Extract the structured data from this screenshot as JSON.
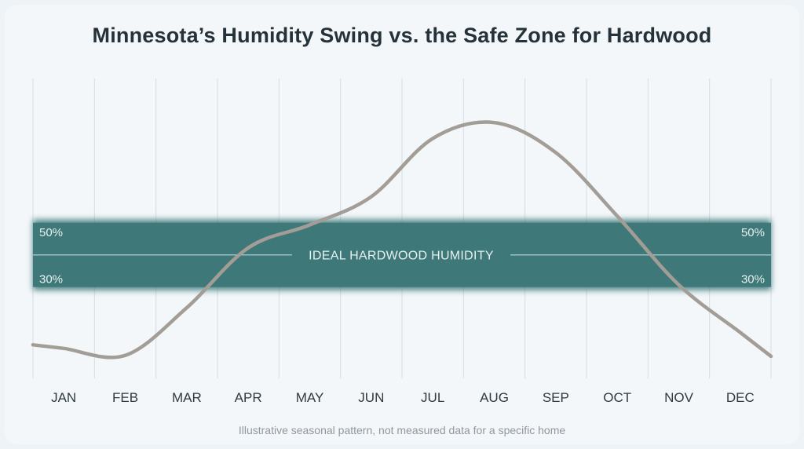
{
  "chart_data": {
    "type": "line",
    "title": "Minnesota’s Humidity Swing vs. the Safe Zone for Hardwood",
    "footnote": "Illustrative seasonal pattern, not measured data for a specific home",
    "categories": [
      "JAN",
      "FEB",
      "MAR",
      "APR",
      "MAY",
      "JUN",
      "JUL",
      "AUG",
      "SEP",
      "OCT",
      "NOV",
      "DEC"
    ],
    "series": [
      {
        "values": [
          13.5,
          11.5,
          25,
          42,
          48.5,
          56.5,
          73,
          77.5,
          69,
          51,
          31.5,
          18
        ],
        "color": "#a29d96"
      }
    ],
    "band": {
      "label": "IDEAL HARDWOOD HUMIDITY",
      "low": 30,
      "high": 50,
      "low_label": "30%",
      "high_label": "50%",
      "color": "#3e7878"
    },
    "ylim": [
      5,
      90
    ],
    "grid": "vertical",
    "xlabel": "",
    "ylabel": ""
  }
}
